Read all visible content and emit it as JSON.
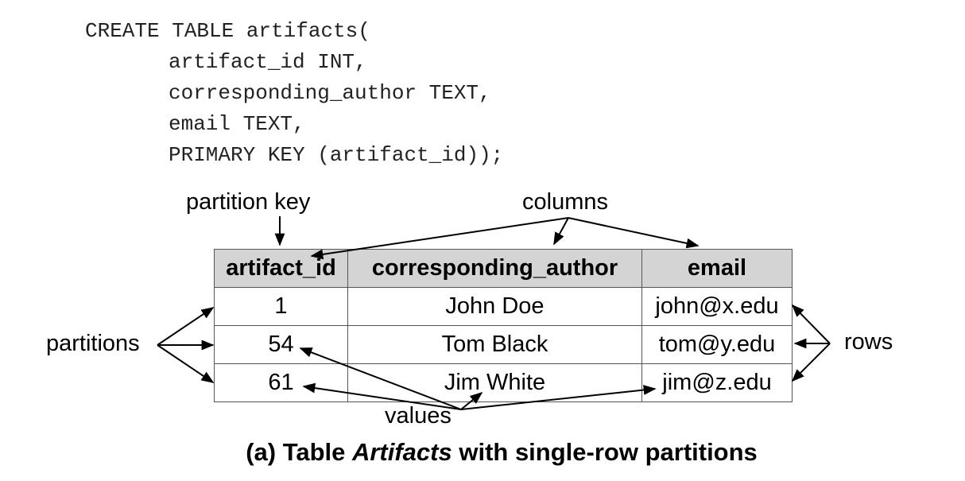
{
  "code": {
    "lines": [
      "CREATE TABLE artifacts(",
      "artifact_id INT,",
      "corresponding_author TEXT,",
      "email TEXT,",
      "PRIMARY KEY (artifact_id));"
    ]
  },
  "labels": {
    "partition_key": "partition key",
    "columns": "columns",
    "partitions": "partitions",
    "rows": "rows",
    "values": "values"
  },
  "table": {
    "headers": [
      "artifact_id",
      "corresponding_author",
      "email"
    ],
    "rows": [
      [
        "1",
        "John Doe",
        "john@x.edu"
      ],
      [
        "54",
        "Tom Black",
        "tom@y.edu"
      ],
      [
        "61",
        "Jim White",
        "jim@z.edu"
      ]
    ]
  },
  "caption": {
    "prefix": "(a) Table ",
    "name": "Artifacts",
    "suffix": " with single-row partitions"
  }
}
